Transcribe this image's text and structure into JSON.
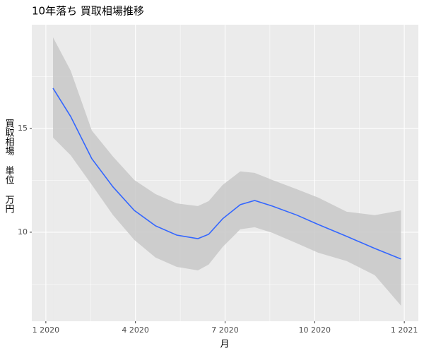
{
  "chart_data": {
    "type": "smooth",
    "title": "10年落ち 買取相場推移",
    "x_label": "月",
    "y_label": "買取相場 単位 万円",
    "x": [
      0.24,
      0.83,
      1.54,
      2.25,
      2.96,
      3.67,
      4.38,
      5.09,
      5.45,
      5.92,
      6.51,
      6.99,
      7.58,
      8.41,
      9.12,
      10.07,
      11.01,
      11.89
    ],
    "series": [
      {
        "color": "#3366ff",
        "values": [
          16.94,
          15.58,
          13.54,
          12.18,
          11.05,
          10.31,
          9.86,
          9.69,
          9.9,
          10.65,
          11.33,
          11.53,
          11.26,
          10.82,
          10.37,
          9.8,
          9.22,
          8.71
        ],
        "lower": [
          14.56,
          13.71,
          12.28,
          10.82,
          9.63,
          8.78,
          8.33,
          8.16,
          8.44,
          9.29,
          10.14,
          10.24,
          9.97,
          9.46,
          9.01,
          8.61,
          7.93,
          6.46
        ],
        "upper": [
          19.39,
          17.79,
          14.9,
          13.64,
          12.52,
          11.84,
          11.39,
          11.26,
          11.5,
          12.28,
          12.93,
          12.86,
          12.52,
          12.07,
          11.67,
          10.99,
          10.82,
          11.05
        ],
        "band_color": "#c8c8c8"
      }
    ],
    "xlim": [
      -0.47,
      12.47
    ],
    "ylim": [
      5.71,
      20.0
    ],
    "xticks": [
      {
        "value": 0,
        "label": "1 2020"
      },
      {
        "value": 3,
        "label": "4 2020"
      },
      {
        "value": 6,
        "label": "7 2020"
      },
      {
        "value": 9,
        "label": "10 2020"
      },
      {
        "value": 12,
        "label": "1 2021"
      }
    ],
    "yticks": [
      10,
      15
    ],
    "minor_xticks": [
      1.5,
      4.5,
      7.5,
      10.5
    ],
    "minor_yticks": [
      7.5,
      12.5,
      17.5
    ],
    "grid": true
  }
}
